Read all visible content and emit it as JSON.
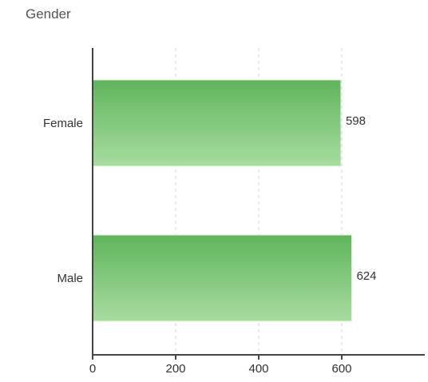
{
  "chart_data": {
    "type": "bar",
    "orientation": "horizontal",
    "title": "Gender",
    "categories": [
      "Female",
      "Male"
    ],
    "series": [
      {
        "values": [
          598,
          624
        ]
      }
    ],
    "data_labels": [
      "598",
      "624"
    ],
    "xlim": [
      0,
      800
    ],
    "x_ticks": [
      0,
      200,
      400,
      600
    ],
    "xlabel": "",
    "ylabel": "",
    "grid": "vertical dashed",
    "legend": "none",
    "colors": {
      "bar_top": "#5fb55c",
      "bar_bottom": "#a8dca0",
      "axis": "#444444",
      "grid": "#d9d9d9"
    }
  }
}
